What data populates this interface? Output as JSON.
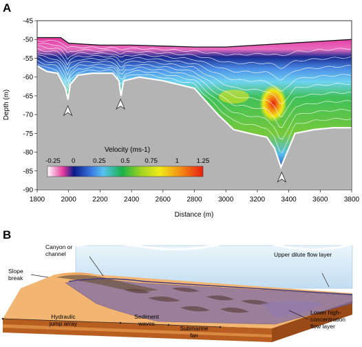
{
  "panels": {
    "a": {
      "label": "A"
    },
    "b": {
      "label": "B"
    }
  },
  "chart_data": {
    "type": "heatmap",
    "xlabel": "Distance (m)",
    "ylabel": "Depth (m)",
    "xlim": [
      1800,
      3800
    ],
    "ylim": [
      -90,
      -45
    ],
    "xticks": [
      "1800",
      "2000",
      "2200",
      "2400",
      "2600",
      "2800",
      "3000",
      "3200",
      "3400",
      "3600",
      "3800"
    ],
    "yticks": [
      "-45",
      "-50",
      "-55",
      "-60",
      "-65",
      "-70",
      "-75",
      "-80",
      "-85",
      "-90"
    ],
    "colorbar": {
      "title": "Velocity (ms-1)",
      "min": -0.25,
      "max": 1.25,
      "ticks": [
        "-0.25",
        "0",
        "0.25",
        "0.5",
        "0.75",
        "1",
        "1.25"
      ],
      "tick_values": [
        -0.25,
        0,
        0.25,
        0.5,
        0.75,
        1,
        1.25
      ],
      "colors": [
        "#ffffff",
        "#e8399c",
        "#0a1a86",
        "#3a78e0",
        "#57c3ef",
        "#19b14a",
        "#9fd321",
        "#f0ea1a",
        "#f38a12",
        "#e81e10"
      ]
    },
    "seabed_profile": [
      {
        "x": 1800,
        "depth": -57
      },
      {
        "x": 1860,
        "depth": -58.5
      },
      {
        "x": 1930,
        "depth": -59
      },
      {
        "x": 1980,
        "depth": -63
      },
      {
        "x": 1996,
        "depth": -66
      },
      {
        "x": 2010,
        "depth": -62
      },
      {
        "x": 2060,
        "depth": -59.5
      },
      {
        "x": 2150,
        "depth": -59
      },
      {
        "x": 2280,
        "depth": -59
      },
      {
        "x": 2320,
        "depth": -61
      },
      {
        "x": 2333,
        "depth": -65
      },
      {
        "x": 2350,
        "depth": -61
      },
      {
        "x": 2450,
        "depth": -60
      },
      {
        "x": 2600,
        "depth": -61
      },
      {
        "x": 2800,
        "depth": -63
      },
      {
        "x": 2950,
        "depth": -70
      },
      {
        "x": 3050,
        "depth": -74
      },
      {
        "x": 3150,
        "depth": -75
      },
      {
        "x": 3260,
        "depth": -76
      },
      {
        "x": 3310,
        "depth": -79
      },
      {
        "x": 3350,
        "depth": -84
      },
      {
        "x": 3390,
        "depth": -80
      },
      {
        "x": 3440,
        "depth": -75
      },
      {
        "x": 3560,
        "depth": -74
      },
      {
        "x": 3680,
        "depth": -73.5
      },
      {
        "x": 3800,
        "depth": -73.5
      }
    ],
    "flow_top": [
      {
        "x": 1800,
        "depth": -49.5
      },
      {
        "x": 1950,
        "depth": -49.5
      },
      {
        "x": 2000,
        "depth": -51
      },
      {
        "x": 2200,
        "depth": -51.5
      },
      {
        "x": 2400,
        "depth": -51.5
      },
      {
        "x": 2800,
        "depth": -52
      },
      {
        "x": 3000,
        "depth": -52
      },
      {
        "x": 3200,
        "depth": -51.5
      },
      {
        "x": 3400,
        "depth": -51
      },
      {
        "x": 3600,
        "depth": -50.5
      },
      {
        "x": 3800,
        "depth": -50
      }
    ],
    "sampling_markers_x": [
      1995,
      2330,
      3355
    ]
  },
  "diagram_labels": {
    "canyon": "Canyon or channel",
    "slope_break": "Slope break",
    "upper_layer": "Upper dilute flow layer",
    "lower_layer": "Lower high-concentration flow layer",
    "hydraulic_jump": "Hydraulic jump array",
    "sediment_waves": "Sediment waves",
    "submarine_fan": "Submarine fan"
  }
}
